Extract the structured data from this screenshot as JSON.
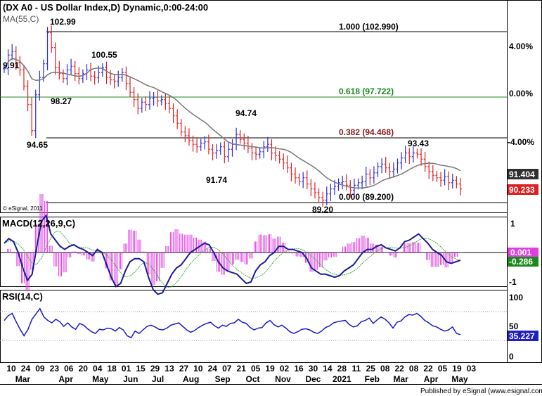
{
  "header": {
    "title": "(DX A0 - US Dollar Index,D) Dynamic,0:00-24:00",
    "ma_label": "MA(55,C)",
    "copyright": "© eSignal, 2011"
  },
  "footer": {
    "published": "Published by eSignal (www.esignal.com)"
  },
  "colors": {
    "up_bar": "#2a2ae8",
    "down_bar": "#e02020",
    "ma_line": "#777777",
    "macd_line": "#1a1a9a",
    "signal_line": "#3aaa3a",
    "histogram": "#e040e0",
    "rsi_line": "#1a1acc",
    "fib_100": "#000000",
    "fib_618": "#1a8a1a",
    "fib_382": "#8a1a1a",
    "fib_000": "#000000",
    "badge_dark": "#303030",
    "badge_red": "#e02020",
    "badge_green": "#1a8a1a",
    "badge_blue": "#2020c0"
  },
  "chart_data": [
    {
      "type": "candlestick",
      "panel": "price",
      "title": "(DX A0 - US Dollar Index,D) Dynamic,0:00-24:00",
      "y_axis_labels": [
        "4.00%",
        "0.00%",
        "-4.00%"
      ],
      "x_date_labels": [
        "10",
        "24",
        "09",
        "23",
        "06",
        "20",
        "04",
        "18",
        "01",
        "15",
        "29",
        "13",
        "27",
        "10",
        "24",
        "07",
        "21",
        "05",
        "19",
        "02",
        "16",
        "30",
        "14",
        "28",
        "11",
        "25",
        "08",
        "22",
        "08",
        "22",
        "05",
        "19",
        "03"
      ],
      "x_month_labels": [
        "Mar",
        "Apr",
        "May",
        "Jun",
        "Jul",
        "Aug",
        "Sep",
        "Oct",
        "Nov",
        "Dec",
        "2021",
        "Feb",
        "Mar",
        "Apr",
        "May"
      ],
      "close_series": [
        100.0,
        101.1,
        101.4,
        100.5,
        99.9,
        98.6,
        97.1,
        95.0,
        97.9,
        99.3,
        100.4,
        102.9,
        101.7,
        100.1,
        99.6,
        99.2,
        99.9,
        100.2,
        99.6,
        99.2,
        99.6,
        99.9,
        99.4,
        99.3,
        99.7,
        100.1,
        99.3,
        99.1,
        99.0,
        99.3,
        99.7,
        98.8,
        98.1,
        97.5,
        96.8,
        97.3,
        97.1,
        97.6,
        97.7,
        97.4,
        97.5,
        97.2,
        96.8,
        96.2,
        95.6,
        94.9,
        94.6,
        94.2,
        93.9,
        93.7,
        94.0,
        94.1,
        93.5,
        93.2,
        93.4,
        93.7,
        92.9,
        93.5,
        93.9,
        94.7,
        94.3,
        94.0,
        93.6,
        93.2,
        93.1,
        93.3,
        93.7,
        93.9,
        93.2,
        93.0,
        92.7,
        92.4,
        92.0,
        91.5,
        91.2,
        90.9,
        91.2,
        90.7,
        90.3,
        90.0,
        89.6,
        89.4,
        89.9,
        90.3,
        90.5,
        90.8,
        90.9,
        90.6,
        90.2,
        90.6,
        90.8,
        90.9,
        91.5,
        91.2,
        91.6,
        92.1,
        92.3,
        92.0,
        91.7,
        91.9,
        92.4,
        92.8,
        93.2,
        92.9,
        93.2,
        93.1,
        92.7,
        92.1,
        91.7,
        91.4,
        91.2,
        91.0,
        91.3,
        90.8,
        91.0,
        90.7,
        90.3
      ]
    },
    {
      "type": "line",
      "panel": "macd",
      "title": "MACD(12,26,9,C)",
      "y_axis_labels": [
        "1",
        "-1"
      ],
      "values": [
        0.3,
        0.45,
        0.35,
        0.0,
        -0.5,
        -0.9,
        -0.7,
        0.2,
        1.0,
        1.2,
        0.6,
        0.4,
        0.2,
        0.1,
        0.2,
        0.25,
        0.15,
        0.1,
        0.0,
        -0.1,
        0.1,
        0.0,
        -0.4,
        -0.8,
        -1.1,
        -1.0,
        -0.6,
        -0.3,
        -0.2,
        -0.2,
        -0.3,
        -0.8,
        -1.2,
        -1.35,
        -1.3,
        -1.0,
        -0.7,
        -0.5,
        -0.4,
        -0.2,
        0.0,
        0.1,
        0.2,
        0.3,
        0.25,
        0.0,
        -0.3,
        -0.5,
        -0.6,
        -0.65,
        -0.7,
        -0.85,
        -1.0,
        -0.95,
        -0.6,
        -0.4,
        -0.3,
        -0.1,
        0.0,
        0.2,
        0.2,
        0.1,
        0.1,
        0.05,
        0.0,
        -0.2,
        -0.5,
        -0.6,
        -0.7,
        -0.7,
        -0.75,
        -0.8,
        -0.75,
        -0.6,
        -0.5,
        -0.4,
        -0.2,
        0.0,
        0.1,
        0.1,
        0.2,
        0.25,
        0.15,
        0.1,
        0.05,
        0.15,
        0.35,
        0.4,
        0.5,
        0.6,
        0.45,
        0.3,
        0.1,
        0.0,
        -0.1,
        -0.3,
        -0.35,
        -0.3,
        -0.25
      ]
    },
    {
      "type": "line",
      "panel": "rsi",
      "title": "RSI(14,C)",
      "y_axis_labels": [
        "100",
        "50",
        "0"
      ],
      "values": [
        60,
        68,
        72,
        58,
        45,
        34,
        45,
        62,
        71,
        80,
        66,
        60,
        56,
        62,
        58,
        50,
        56,
        49,
        45,
        55,
        52,
        46,
        41,
        38,
        45,
        44,
        47,
        46,
        42,
        48,
        44,
        34,
        31,
        42,
        38,
        44,
        50,
        52,
        49,
        45,
        44,
        47,
        52,
        54,
        56,
        50,
        44,
        40,
        43,
        48,
        52,
        55,
        57,
        51,
        47,
        52,
        50,
        55,
        56,
        62,
        57,
        55,
        48,
        44,
        47,
        48,
        56,
        60,
        53,
        49,
        52,
        47,
        41,
        38,
        41,
        45,
        46,
        44,
        40,
        38,
        42,
        48,
        51,
        56,
        58,
        59,
        60,
        53,
        49,
        51,
        58,
        60,
        64,
        55,
        61,
        66,
        62,
        56,
        47,
        57,
        59,
        66,
        70,
        69,
        72,
        67,
        60,
        56,
        51,
        49,
        45,
        42,
        44,
        49,
        38,
        36
      ]
    }
  ],
  "price_panel": {
    "value_labels": [
      "102.99",
      "100.55",
      "9.91",
      "98.27",
      "94.74",
      "94.65",
      "91.74",
      "93.43",
      "89.20"
    ],
    "fib_levels": [
      {
        "label": "1.000 (102.990)",
        "price": 102.99
      },
      {
        "label": "0.618 (97.722)",
        "price": 97.722
      },
      {
        "label": "0.382 (94.468)",
        "price": 94.468
      },
      {
        "label": "0.000 (89.200)",
        "price": 89.2
      }
    ],
    "badges": [
      "91.404",
      "90.233"
    ]
  },
  "macd_panel": {
    "badges": [
      "0.001",
      "-0.286"
    ]
  },
  "rsi_panel": {
    "badges": [
      "35.227"
    ]
  }
}
